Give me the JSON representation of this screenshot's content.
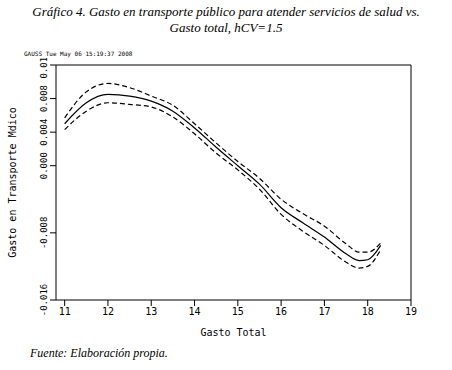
{
  "chart_data": {
    "type": "line",
    "title": "Gráfico 4. Gasto en transporte público para atender servicios de salud vs. Gasto total, hCV=1.5",
    "header": "GAUSS   Tue May 06 15:19:37 2008",
    "source": "Fuente: Elaboración propia.",
    "x_label": "Gasto Total",
    "y_label": "Gasto en Transporte Mdico",
    "x": [
      11,
      11.5,
      12,
      12.5,
      13,
      13.5,
      14,
      14.5,
      15,
      15.5,
      16,
      16.5,
      17,
      17.5,
      17.8,
      18,
      18.3
    ],
    "series": [
      {
        "color": "#000000",
        "line_style": "solid",
        "values": [
          0.005,
          0.0075,
          0.0085,
          0.0083,
          0.0077,
          0.0065,
          0.0045,
          0.0022,
          0.0,
          -0.0022,
          -0.005,
          -0.0068,
          -0.0085,
          -0.0105,
          -0.0113,
          -0.0112,
          -0.0095
        ]
      },
      {
        "color": "#000000",
        "line_style": "dashed",
        "values": [
          0.0057,
          0.0088,
          0.0098,
          0.0093,
          0.0083,
          0.0072,
          0.005,
          0.0027,
          0.0005,
          -0.0015,
          -0.004,
          -0.0057,
          -0.0072,
          -0.0093,
          -0.0103,
          -0.0103,
          -0.0092
        ]
      },
      {
        "color": "#000000",
        "line_style": "dashed",
        "values": [
          0.0043,
          0.0065,
          0.0075,
          0.0073,
          0.007,
          0.0058,
          0.0038,
          0.0015,
          -0.0005,
          -0.0028,
          -0.0058,
          -0.0078,
          -0.0095,
          -0.0115,
          -0.0122,
          -0.012,
          -0.01
        ]
      }
    ],
    "xlim": [
      10.8,
      19
    ],
    "xticks": [
      11,
      12,
      13,
      14,
      15,
      16,
      17,
      18,
      19
    ],
    "ylim": [
      -0.016,
      0.012
    ],
    "yticks": [
      -0.016,
      -0.008,
      {
        "value": 0,
        "label": "0.000"
      },
      0.004,
      0.008,
      0.012
    ]
  }
}
